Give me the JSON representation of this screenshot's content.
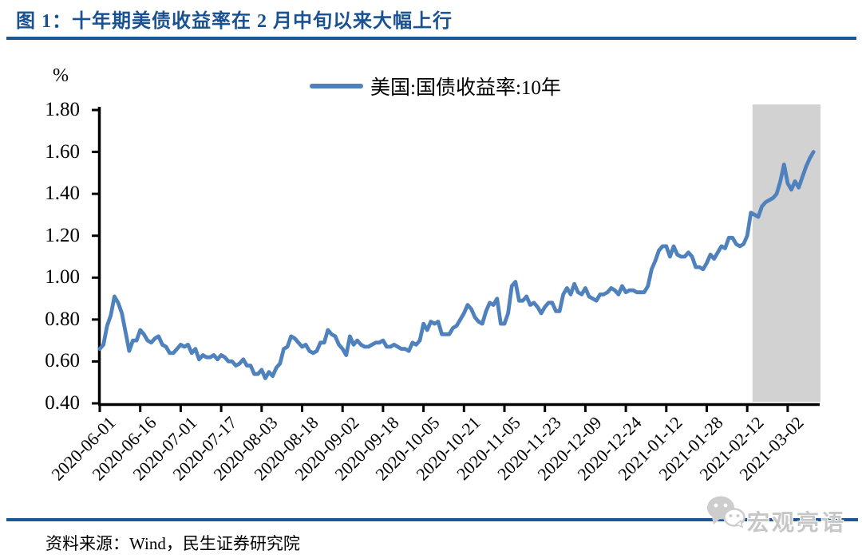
{
  "figure": {
    "title": "图 1：十年期美债收益率在 2 月中旬以来大幅上行",
    "unit_label": "%",
    "source_note": "资料来源：Wind，民生证券研究院",
    "watermark_text": "宏观亮语",
    "watermark_icon": "wechat-icon"
  },
  "legend": {
    "label": "美国:国债收益率:10年"
  },
  "colors": {
    "title_blue": "#1A5191",
    "rule_blue": "#1A5794",
    "series_line": "#4F81BD",
    "axis": "#000000",
    "highlight_gray": "#D2D2D2",
    "watermark_gray": "#C7C7C7"
  },
  "chart_data": {
    "type": "line",
    "title": "图 1：十年期美债收益率在 2 月中旬以来大幅上行",
    "xlabel": "",
    "ylabel": "%",
    "ylim": [
      0.4,
      1.8
    ],
    "grid": false,
    "legend_position": "top-center",
    "y_tick_labels": [
      "1.80",
      "1.60",
      "1.40",
      "1.20",
      "1.00",
      "0.80",
      "0.60",
      "0.40"
    ],
    "x_tick_labels": [
      "2020-06-01",
      "2020-06-16",
      "2020-07-01",
      "2020-07-17",
      "2020-08-03",
      "2020-08-18",
      "2020-09-02",
      "2020-09-18",
      "2020-10-05",
      "2020-10-21",
      "2020-11-05",
      "2020-11-23",
      "2020-12-09",
      "2020-12-24",
      "2021-01-12",
      "2021-01-28",
      "2021-02-12",
      "2021-03-02"
    ],
    "x_tick_every": 11,
    "highlight_region": {
      "start_index": 177,
      "start_label": "2021-02-12",
      "color": "#D2D2D2"
    },
    "series": [
      {
        "name": "美国:国债收益率:10年",
        "values": [
          0.66,
          0.68,
          0.77,
          0.82,
          0.91,
          0.88,
          0.83,
          0.74,
          0.65,
          0.7,
          0.7,
          0.75,
          0.73,
          0.7,
          0.69,
          0.71,
          0.72,
          0.68,
          0.67,
          0.64,
          0.64,
          0.66,
          0.68,
          0.67,
          0.68,
          0.64,
          0.66,
          0.61,
          0.63,
          0.62,
          0.62,
          0.63,
          0.61,
          0.63,
          0.62,
          0.6,
          0.6,
          0.58,
          0.59,
          0.61,
          0.58,
          0.58,
          0.54,
          0.54,
          0.56,
          0.52,
          0.55,
          0.53,
          0.57,
          0.59,
          0.66,
          0.67,
          0.72,
          0.71,
          0.69,
          0.67,
          0.68,
          0.65,
          0.64,
          0.65,
          0.69,
          0.69,
          0.75,
          0.73,
          0.72,
          0.68,
          0.66,
          0.63,
          0.72,
          0.68,
          0.7,
          0.68,
          0.67,
          0.67,
          0.68,
          0.69,
          0.69,
          0.7,
          0.67,
          0.67,
          0.68,
          0.67,
          0.66,
          0.66,
          0.65,
          0.69,
          0.68,
          0.7,
          0.78,
          0.75,
          0.79,
          0.78,
          0.79,
          0.73,
          0.73,
          0.73,
          0.76,
          0.77,
          0.8,
          0.83,
          0.87,
          0.85,
          0.81,
          0.79,
          0.78,
          0.84,
          0.88,
          0.87,
          0.9,
          0.78,
          0.78,
          0.83,
          0.96,
          0.98,
          0.89,
          0.89,
          0.91,
          0.87,
          0.88,
          0.86,
          0.83,
          0.86,
          0.88,
          0.88,
          0.84,
          0.84,
          0.92,
          0.95,
          0.92,
          0.97,
          0.93,
          0.92,
          0.95,
          0.91,
          0.9,
          0.89,
          0.92,
          0.92,
          0.93,
          0.95,
          0.94,
          0.92,
          0.96,
          0.93,
          0.94,
          0.94,
          0.93,
          0.93,
          0.93,
          0.96,
          1.04,
          1.08,
          1.13,
          1.15,
          1.15,
          1.1,
          1.15,
          1.11,
          1.1,
          1.1,
          1.12,
          1.1,
          1.05,
          1.05,
          1.04,
          1.07,
          1.11,
          1.09,
          1.12,
          1.15,
          1.14,
          1.19,
          1.19,
          1.16,
          1.15,
          1.16,
          1.2,
          1.31,
          1.3,
          1.29,
          1.34,
          1.36,
          1.37,
          1.38,
          1.4,
          1.46,
          1.54,
          1.45,
          1.42,
          1.46,
          1.43,
          1.48,
          1.53,
          1.57,
          1.6
        ]
      }
    ]
  }
}
